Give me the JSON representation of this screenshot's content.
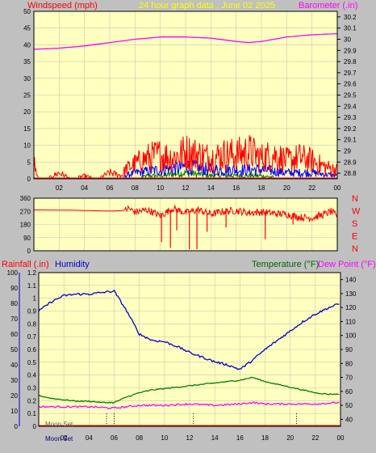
{
  "chart_data": [
    {
      "type": "line",
      "title": "24 hour graph data , June 02 2025",
      "left_axis_label": "Windspeed (mph)",
      "right_axis_label": "Barometer (.in)",
      "x_ticks": [
        "02",
        "04",
        "06",
        "08",
        "10",
        "12",
        "14",
        "16",
        "18",
        "20",
        "22",
        "00"
      ],
      "x_range_hours": [
        0,
        24
      ],
      "y_left_ticks": [
        "0",
        "5",
        "10",
        "15",
        "20",
        "25",
        "30",
        "35",
        "40",
        "45",
        "50"
      ],
      "y_left_range": [
        0,
        50
      ],
      "y_right_ticks": [
        "28.8",
        "28.9",
        "29",
        "29.1",
        "29.2",
        "29.3",
        "29.4",
        "29.5",
        "29.6",
        "29.7",
        "29.8",
        "29.9",
        "30",
        "30.1",
        "30.2"
      ],
      "y_right_range": [
        28.75,
        30.25
      ],
      "grid": true,
      "series": [
        {
          "name": "Barometer",
          "axis": "right",
          "color": "#ff00ff",
          "x": [
            0,
            2,
            4,
            6,
            8,
            10,
            12,
            14,
            16,
            17,
            18,
            20,
            22,
            24
          ],
          "y": [
            29.91,
            29.92,
            29.94,
            29.97,
            30.0,
            30.02,
            30.02,
            30.01,
            29.98,
            29.97,
            29.98,
            30.02,
            30.04,
            30.05
          ]
        },
        {
          "name": "Wind gust",
          "axis": "left",
          "color": "#ff0000",
          "x": [
            0,
            0.2,
            0.5,
            1,
            2,
            3,
            4,
            5,
            6,
            7,
            7.2,
            8,
            9,
            10,
            11,
            12,
            13,
            14,
            15,
            16,
            17,
            18,
            19,
            20,
            21,
            22,
            23,
            24
          ],
          "y": [
            6,
            1,
            0,
            0,
            2,
            0,
            1,
            0,
            2,
            1,
            3,
            5,
            7,
            8,
            7,
            9,
            8,
            7,
            8,
            8,
            9,
            7,
            8,
            6,
            7,
            6,
            4,
            3
          ]
        },
        {
          "name": "Wind average",
          "axis": "left",
          "color": "#0000ff",
          "x": [
            0,
            7,
            7.2,
            8,
            10,
            12,
            14,
            16,
            18,
            20,
            22,
            24
          ],
          "y": [
            0,
            0,
            1,
            2,
            3,
            4,
            3,
            3,
            3,
            2,
            2,
            1
          ]
        },
        {
          "name": "Wind calm",
          "axis": "left",
          "color": "#008000",
          "x": [
            0,
            8,
            9,
            10,
            12,
            14,
            16,
            18,
            20,
            24
          ],
          "y": [
            0,
            0,
            1,
            1,
            2,
            1,
            1,
            1,
            0,
            0
          ]
        }
      ]
    },
    {
      "type": "line",
      "y_ticks": [
        "0",
        "90",
        "180",
        "270",
        "360"
      ],
      "y_range": [
        0,
        360
      ],
      "compass_labels": [
        "N",
        "W",
        "S",
        "E",
        "N"
      ],
      "grid": true,
      "series": [
        {
          "name": "Wind direction",
          "color": "#ff0000",
          "x": [
            0,
            3,
            6,
            7,
            7.5,
            8,
            9,
            10,
            11,
            12,
            13,
            14,
            15,
            16,
            17,
            18,
            19,
            20,
            21,
            22,
            23,
            23.5,
            24
          ],
          "y": [
            280,
            278,
            272,
            275,
            290,
            265,
            280,
            240,
            290,
            260,
            280,
            250,
            270,
            275,
            260,
            265,
            255,
            250,
            230,
            225,
            250,
            270,
            235
          ]
        },
        {
          "name": "Wind direction spikes",
          "color": "#ff0000",
          "spikes": [
            [
              10.1,
              60
            ],
            [
              10.8,
              20
            ],
            [
              11.3,
              140
            ],
            [
              12.3,
              10
            ],
            [
              12.9,
              10
            ],
            [
              13.7,
              130
            ],
            [
              15.2,
              160
            ],
            [
              18.3,
              80
            ],
            [
              20.5,
              180
            ]
          ]
        }
      ]
    },
    {
      "type": "line",
      "left_axis_label_1": "Rainfall (.in)",
      "left_axis_label_2": "Humidity",
      "right_axis_label_1": "Temperature (°F)",
      "right_axis_label_2": "Dew Point (°F)",
      "x_ticks": [
        "02",
        "04",
        "06",
        "08",
        "10",
        "12",
        "14",
        "16",
        "18",
        "20",
        "22",
        "00"
      ],
      "x_range_hours": [
        0,
        24
      ],
      "humidity_ticks": [
        "0",
        "10",
        "20",
        "30",
        "40",
        "50",
        "60",
        "70",
        "80",
        "90",
        "100"
      ],
      "humidity_range": [
        0,
        100
      ],
      "rain_ticks": [
        "0",
        "0.1",
        "0.2",
        "0.3",
        "0.4",
        "0.5",
        "0.6",
        "0.7",
        "0.8",
        "0.9",
        "1",
        "1.1",
        "1.2"
      ],
      "rain_range": [
        0,
        1.2
      ],
      "temp_ticks": [
        "40",
        "50",
        "60",
        "70",
        "80",
        "90",
        "100",
        "110",
        "120",
        "130",
        "140"
      ],
      "temp_range": [
        35,
        145
      ],
      "moon_labels": [
        "Moon Set",
        "Moon Set"
      ],
      "grid": true,
      "series": [
        {
          "name": "Humidity",
          "axis": "humidity",
          "color": "#0000cc",
          "x": [
            0,
            1,
            2,
            3,
            4,
            5,
            6,
            7,
            8,
            9,
            10,
            11,
            12,
            13,
            14,
            15,
            16,
            17,
            18,
            19,
            20,
            21,
            22,
            23,
            24
          ],
          "y": [
            75,
            81,
            85,
            86,
            86,
            87,
            88,
            75,
            60,
            56,
            55,
            52,
            48,
            45,
            42,
            40,
            37,
            43,
            50,
            56,
            62,
            68,
            73,
            77,
            80
          ]
        },
        {
          "name": "Temperature",
          "axis": "temp",
          "color": "#008000",
          "x": [
            0,
            1,
            2,
            3,
            4,
            5,
            6,
            7,
            8,
            9,
            10,
            11,
            12,
            13,
            14,
            15,
            16,
            17,
            18,
            19,
            20,
            21,
            22,
            23,
            24
          ],
          "y": [
            57,
            55,
            54,
            53,
            53,
            52,
            52,
            56,
            59,
            61,
            62,
            63,
            64,
            65,
            66,
            67,
            68,
            70,
            67,
            65,
            63,
            61,
            59,
            58,
            58
          ]
        },
        {
          "name": "Dew Point",
          "axis": "temp",
          "color": "#ff00ff",
          "x": [
            0,
            2,
            4,
            6,
            8,
            10,
            12,
            14,
            16,
            17,
            18,
            20,
            22,
            24
          ],
          "y": [
            49,
            49,
            49,
            48,
            50,
            50,
            51,
            50,
            51,
            52,
            51,
            51,
            51,
            52
          ]
        },
        {
          "name": "Rainfall",
          "axis": "rain",
          "color": "#ff0000",
          "x": [
            0,
            24
          ],
          "y": [
            0,
            0
          ]
        }
      ]
    }
  ]
}
